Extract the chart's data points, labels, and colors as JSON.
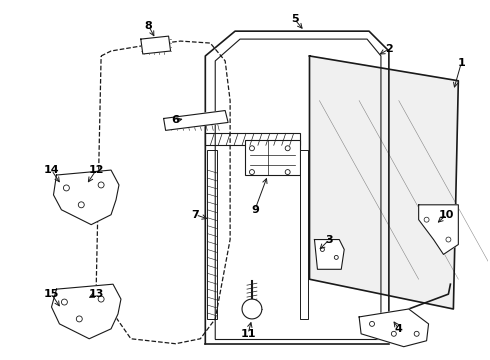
{
  "bg_color": "#ffffff",
  "line_color": "#1a1a1a",
  "label_color": "#000000",
  "label_configs": [
    [
      "1",
      463,
      62,
      455,
      90
    ],
    [
      "2",
      390,
      48,
      378,
      55
    ],
    [
      "3",
      330,
      240,
      318,
      252
    ],
    [
      "4",
      400,
      330,
      393,
      320
    ],
    [
      "5",
      295,
      18,
      305,
      30
    ],
    [
      "6",
      175,
      120,
      185,
      118
    ],
    [
      "7",
      195,
      215,
      210,
      220
    ],
    [
      "8",
      148,
      25,
      155,
      38
    ],
    [
      "9",
      255,
      210,
      268,
      175
    ],
    [
      "10",
      448,
      215,
      437,
      225
    ],
    [
      "11",
      248,
      335,
      252,
      320
    ],
    [
      "12",
      95,
      170,
      85,
      185
    ],
    [
      "13",
      95,
      295,
      85,
      300
    ],
    [
      "14",
      50,
      170,
      60,
      185
    ],
    [
      "15",
      50,
      295,
      60,
      310
    ]
  ]
}
